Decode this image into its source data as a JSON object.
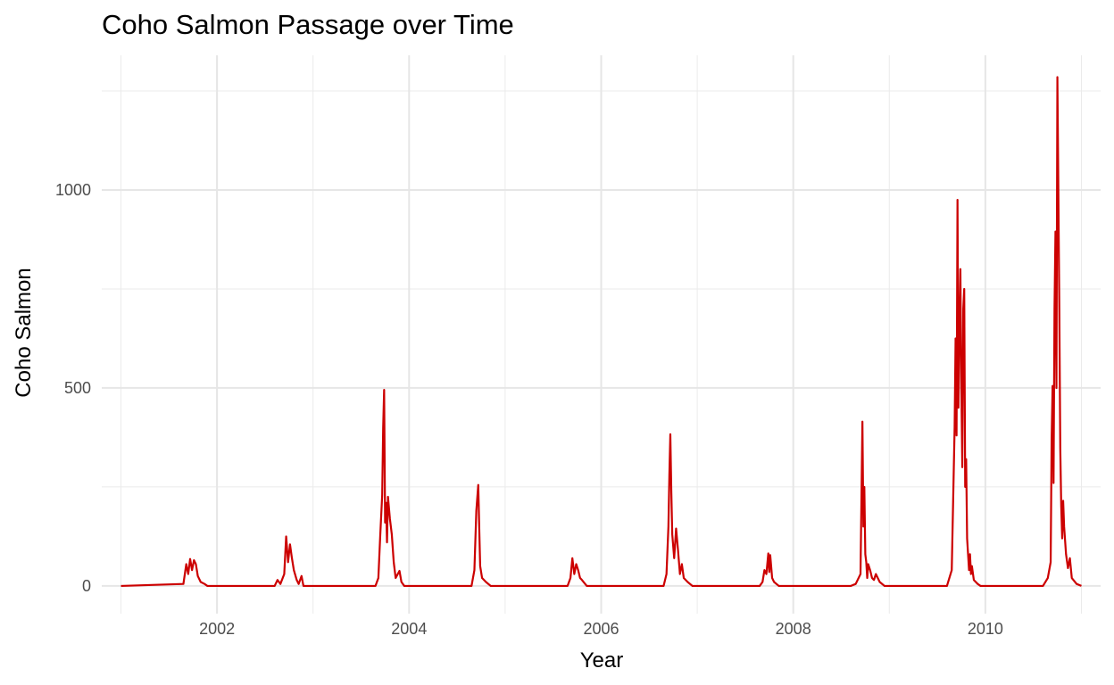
{
  "chart_data": {
    "type": "line",
    "title": "Coho Salmon Passage over Time",
    "xlabel": "Year",
    "ylabel": "Coho Salmon",
    "x_ticks": [
      2002,
      2004,
      2006,
      2008,
      2010
    ],
    "y_ticks": [
      0,
      500,
      1000
    ],
    "xlim": [
      2000.8,
      2011.2
    ],
    "ylim": [
      -70,
      1340
    ],
    "grid": true,
    "line_color": "#cc0000",
    "series": [
      {
        "x": [
          2001.0,
          2001.65,
          2001.68,
          2001.7,
          2001.72,
          2001.74,
          2001.76,
          2001.78,
          2001.8,
          2001.83,
          2001.87,
          2001.9,
          2002.6,
          2002.63,
          2002.66,
          2002.7,
          2002.72,
          2002.74,
          2002.76,
          2002.78,
          2002.8,
          2002.83,
          2002.85,
          2002.88,
          2002.9,
          2003.65,
          2003.68,
          2003.7,
          2003.72,
          2003.73,
          2003.74,
          2003.75,
          2003.76,
          2003.77,
          2003.78,
          2003.8,
          2003.82,
          2003.84,
          2003.86,
          2003.9,
          2003.92,
          2003.95,
          2004.65,
          2004.68,
          2004.7,
          2004.72,
          2004.73,
          2004.74,
          2004.76,
          2004.8,
          2004.85,
          2005.65,
          2005.68,
          2005.7,
          2005.72,
          2005.74,
          2005.76,
          2005.78,
          2005.8,
          2005.85,
          2006.65,
          2006.68,
          2006.7,
          2006.71,
          2006.72,
          2006.73,
          2006.74,
          2006.76,
          2006.78,
          2006.8,
          2006.82,
          2006.84,
          2006.86,
          2006.9,
          2006.95,
          2007.65,
          2007.68,
          2007.7,
          2007.72,
          2007.74,
          2007.75,
          2007.76,
          2007.78,
          2007.8,
          2007.85,
          2008.6,
          2008.65,
          2008.7,
          2008.72,
          2008.73,
          2008.74,
          2008.75,
          2008.76,
          2008.77,
          2008.78,
          2008.8,
          2008.82,
          2008.84,
          2008.86,
          2008.9,
          2008.95,
          2009.6,
          2009.65,
          2009.68,
          2009.69,
          2009.7,
          2009.71,
          2009.72,
          2009.73,
          2009.74,
          2009.75,
          2009.76,
          2009.77,
          2009.78,
          2009.79,
          2009.8,
          2009.81,
          2009.82,
          2009.83,
          2009.84,
          2009.85,
          2009.86,
          2009.88,
          2009.9,
          2009.92,
          2009.95,
          2010.6,
          2010.65,
          2010.68,
          2010.69,
          2010.7,
          2010.71,
          2010.72,
          2010.73,
          2010.74,
          2010.75,
          2010.76,
          2010.77,
          2010.78,
          2010.79,
          2010.8,
          2010.81,
          2010.82,
          2010.84,
          2010.86,
          2010.88,
          2010.9,
          2010.95,
          2011.0
        ],
        "y": [
          0,
          5,
          55,
          30,
          68,
          40,
          65,
          55,
          25,
          10,
          5,
          0,
          0,
          15,
          5,
          30,
          125,
          60,
          105,
          70,
          40,
          15,
          5,
          25,
          0,
          0,
          20,
          130,
          230,
          400,
          495,
          160,
          210,
          110,
          225,
          170,
          130,
          60,
          20,
          38,
          10,
          0,
          0,
          40,
          190,
          255,
          150,
          50,
          20,
          10,
          0,
          0,
          20,
          70,
          30,
          55,
          40,
          20,
          15,
          0,
          0,
          30,
          150,
          280,
          383,
          240,
          130,
          70,
          145,
          90,
          30,
          55,
          20,
          10,
          0,
          0,
          10,
          40,
          30,
          82,
          35,
          78,
          20,
          10,
          0,
          0,
          5,
          30,
          415,
          150,
          250,
          80,
          60,
          20,
          55,
          40,
          20,
          15,
          30,
          10,
          0,
          0,
          40,
          400,
          625,
          380,
          975,
          450,
          650,
          800,
          500,
          300,
          700,
          750,
          250,
          320,
          120,
          80,
          40,
          80,
          30,
          50,
          15,
          10,
          5,
          0,
          0,
          20,
          60,
          370,
          505,
          260,
          700,
          895,
          500,
          1285,
          1000,
          700,
          350,
          200,
          120,
          215,
          150,
          80,
          45,
          70,
          20,
          5,
          0
        ]
      }
    ]
  }
}
